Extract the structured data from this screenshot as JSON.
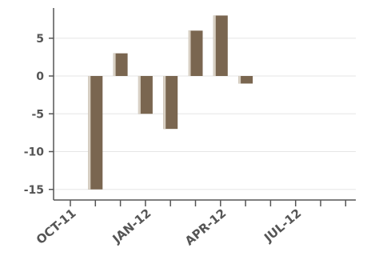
{
  "chart_data": {
    "type": "bar",
    "categories": [
      "Nov-11",
      "Dec-11",
      "Jan-12",
      "Feb-12",
      "Mar-12",
      "Apr-12",
      "May-12"
    ],
    "values": [
      -15,
      3,
      -5,
      -7,
      6,
      8,
      -1
    ],
    "title": "",
    "xlabel": "",
    "ylabel": "",
    "ylim": [
      -16,
      9
    ],
    "y_ticks": [
      5,
      0,
      -5,
      -10,
      -15
    ],
    "y_tick_labels": [
      "5",
      "0",
      "-5",
      "-10",
      "-15"
    ],
    "x_tick_labels": [
      "OCT-11",
      "JAN-12",
      "APR-12",
      "JUL-12"
    ],
    "grid": "horizontal",
    "legend": "none",
    "colors": {
      "bar": "#7a6650",
      "bar_highlight": "#d8d0c4",
      "axis": "#555555",
      "grid": "#e6e6e6",
      "text": "#555555"
    }
  }
}
